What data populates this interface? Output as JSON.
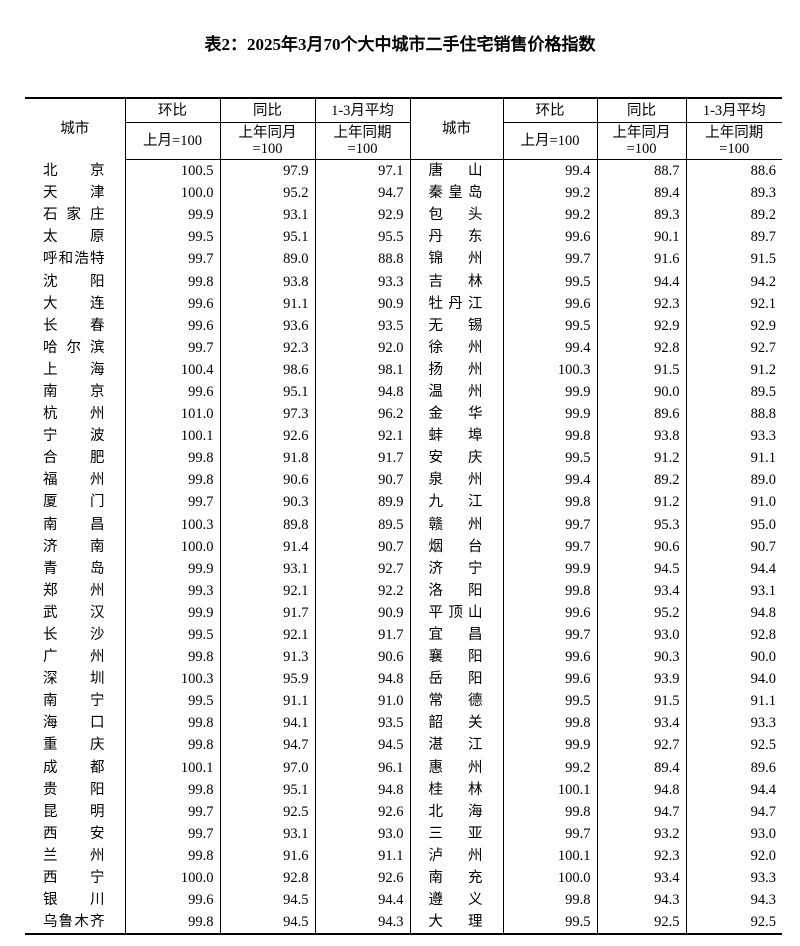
{
  "title": "表2：2025年3月70个大中城市二手住宅销售价格指数",
  "header": {
    "city": "城市",
    "mom": "环比",
    "yoy": "同比",
    "avg": "1-3月平均",
    "mom_base": "上月=100",
    "yoy_base_1": "上年同月",
    "yoy_base_2": "=100",
    "avg_base_1": "上年同期",
    "avg_base_2": "=100"
  },
  "rows": [
    {
      "left": {
        "city": "北京",
        "mom": "100.5",
        "yoy": "97.9",
        "avg": "97.1"
      },
      "right": {
        "city": "唐山",
        "mom": "99.4",
        "yoy": "88.7",
        "avg": "88.6"
      }
    },
    {
      "left": {
        "city": "天津",
        "mom": "100.0",
        "yoy": "95.2",
        "avg": "94.7"
      },
      "right": {
        "city": "秦皇岛",
        "mom": "99.2",
        "yoy": "89.4",
        "avg": "89.3"
      }
    },
    {
      "left": {
        "city": "石家庄",
        "mom": "99.9",
        "yoy": "93.1",
        "avg": "92.9"
      },
      "right": {
        "city": "包头",
        "mom": "99.2",
        "yoy": "89.3",
        "avg": "89.2"
      }
    },
    {
      "left": {
        "city": "太原",
        "mom": "99.5",
        "yoy": "95.1",
        "avg": "95.5"
      },
      "right": {
        "city": "丹东",
        "mom": "99.6",
        "yoy": "90.1",
        "avg": "89.7"
      }
    },
    {
      "left": {
        "city": "呼和浩特",
        "mom": "99.7",
        "yoy": "89.0",
        "avg": "88.8"
      },
      "right": {
        "city": "锦州",
        "mom": "99.7",
        "yoy": "91.6",
        "avg": "91.5"
      }
    },
    {
      "left": {
        "city": "沈阳",
        "mom": "99.8",
        "yoy": "93.8",
        "avg": "93.3"
      },
      "right": {
        "city": "吉林",
        "mom": "99.5",
        "yoy": "94.4",
        "avg": "94.2"
      }
    },
    {
      "left": {
        "city": "大连",
        "mom": "99.6",
        "yoy": "91.1",
        "avg": "90.9"
      },
      "right": {
        "city": "牡丹江",
        "mom": "99.6",
        "yoy": "92.3",
        "avg": "92.1"
      }
    },
    {
      "left": {
        "city": "长春",
        "mom": "99.6",
        "yoy": "93.6",
        "avg": "93.5"
      },
      "right": {
        "city": "无锡",
        "mom": "99.5",
        "yoy": "92.9",
        "avg": "92.9"
      }
    },
    {
      "left": {
        "city": "哈尔滨",
        "mom": "99.7",
        "yoy": "92.3",
        "avg": "92.0"
      },
      "right": {
        "city": "徐州",
        "mom": "99.4",
        "yoy": "92.8",
        "avg": "92.7"
      }
    },
    {
      "left": {
        "city": "上海",
        "mom": "100.4",
        "yoy": "98.6",
        "avg": "98.1"
      },
      "right": {
        "city": "扬州",
        "mom": "100.3",
        "yoy": "91.5",
        "avg": "91.2"
      }
    },
    {
      "left": {
        "city": "南京",
        "mom": "99.6",
        "yoy": "95.1",
        "avg": "94.8"
      },
      "right": {
        "city": "温州",
        "mom": "99.9",
        "yoy": "90.0",
        "avg": "89.5"
      }
    },
    {
      "left": {
        "city": "杭州",
        "mom": "101.0",
        "yoy": "97.3",
        "avg": "96.2"
      },
      "right": {
        "city": "金华",
        "mom": "99.9",
        "yoy": "89.6",
        "avg": "88.8"
      }
    },
    {
      "left": {
        "city": "宁波",
        "mom": "100.1",
        "yoy": "92.6",
        "avg": "92.1"
      },
      "right": {
        "city": "蚌埠",
        "mom": "99.8",
        "yoy": "93.8",
        "avg": "93.3"
      }
    },
    {
      "left": {
        "city": "合肥",
        "mom": "99.8",
        "yoy": "91.8",
        "avg": "91.7"
      },
      "right": {
        "city": "安庆",
        "mom": "99.5",
        "yoy": "91.2",
        "avg": "91.1"
      }
    },
    {
      "left": {
        "city": "福州",
        "mom": "99.8",
        "yoy": "90.6",
        "avg": "90.7"
      },
      "right": {
        "city": "泉州",
        "mom": "99.4",
        "yoy": "89.2",
        "avg": "89.0"
      }
    },
    {
      "left": {
        "city": "厦门",
        "mom": "99.7",
        "yoy": "90.3",
        "avg": "89.9"
      },
      "right": {
        "city": "九江",
        "mom": "99.8",
        "yoy": "91.2",
        "avg": "91.0"
      }
    },
    {
      "left": {
        "city": "南昌",
        "mom": "100.3",
        "yoy": "89.8",
        "avg": "89.5"
      },
      "right": {
        "city": "赣州",
        "mom": "99.7",
        "yoy": "95.3",
        "avg": "95.0"
      }
    },
    {
      "left": {
        "city": "济南",
        "mom": "100.0",
        "yoy": "91.4",
        "avg": "90.7"
      },
      "right": {
        "city": "烟台",
        "mom": "99.7",
        "yoy": "90.6",
        "avg": "90.7"
      }
    },
    {
      "left": {
        "city": "青岛",
        "mom": "99.9",
        "yoy": "93.1",
        "avg": "92.7"
      },
      "right": {
        "city": "济宁",
        "mom": "99.9",
        "yoy": "94.5",
        "avg": "94.4"
      }
    },
    {
      "left": {
        "city": "郑州",
        "mom": "99.3",
        "yoy": "92.1",
        "avg": "92.2"
      },
      "right": {
        "city": "洛阳",
        "mom": "99.8",
        "yoy": "93.4",
        "avg": "93.1"
      }
    },
    {
      "left": {
        "city": "武汉",
        "mom": "99.9",
        "yoy": "91.7",
        "avg": "90.9"
      },
      "right": {
        "city": "平顶山",
        "mom": "99.6",
        "yoy": "95.2",
        "avg": "94.8"
      }
    },
    {
      "left": {
        "city": "长沙",
        "mom": "99.5",
        "yoy": "92.1",
        "avg": "91.7"
      },
      "right": {
        "city": "宜昌",
        "mom": "99.7",
        "yoy": "93.0",
        "avg": "92.8"
      }
    },
    {
      "left": {
        "city": "广州",
        "mom": "99.8",
        "yoy": "91.3",
        "avg": "90.6"
      },
      "right": {
        "city": "襄阳",
        "mom": "99.6",
        "yoy": "90.3",
        "avg": "90.0"
      }
    },
    {
      "left": {
        "city": "深圳",
        "mom": "100.3",
        "yoy": "95.9",
        "avg": "94.8"
      },
      "right": {
        "city": "岳阳",
        "mom": "99.6",
        "yoy": "93.9",
        "avg": "94.0"
      }
    },
    {
      "left": {
        "city": "南宁",
        "mom": "99.5",
        "yoy": "91.1",
        "avg": "91.0"
      },
      "right": {
        "city": "常德",
        "mom": "99.5",
        "yoy": "91.5",
        "avg": "91.1"
      }
    },
    {
      "left": {
        "city": "海口",
        "mom": "99.8",
        "yoy": "94.1",
        "avg": "93.5"
      },
      "right": {
        "city": "韶关",
        "mom": "99.8",
        "yoy": "93.4",
        "avg": "93.3"
      }
    },
    {
      "left": {
        "city": "重庆",
        "mom": "99.8",
        "yoy": "94.7",
        "avg": "94.5"
      },
      "right": {
        "city": "湛江",
        "mom": "99.9",
        "yoy": "92.7",
        "avg": "92.5"
      }
    },
    {
      "left": {
        "city": "成都",
        "mom": "100.1",
        "yoy": "97.0",
        "avg": "96.1"
      },
      "right": {
        "city": "惠州",
        "mom": "99.2",
        "yoy": "89.4",
        "avg": "89.6"
      }
    },
    {
      "left": {
        "city": "贵阳",
        "mom": "99.8",
        "yoy": "95.1",
        "avg": "94.8"
      },
      "right": {
        "city": "桂林",
        "mom": "100.1",
        "yoy": "94.8",
        "avg": "94.4"
      }
    },
    {
      "left": {
        "city": "昆明",
        "mom": "99.7",
        "yoy": "92.5",
        "avg": "92.6"
      },
      "right": {
        "city": "北海",
        "mom": "99.8",
        "yoy": "94.7",
        "avg": "94.7"
      }
    },
    {
      "left": {
        "city": "西安",
        "mom": "99.7",
        "yoy": "93.1",
        "avg": "93.0"
      },
      "right": {
        "city": "三亚",
        "mom": "99.7",
        "yoy": "93.2",
        "avg": "93.0"
      }
    },
    {
      "left": {
        "city": "兰州",
        "mom": "99.8",
        "yoy": "91.6",
        "avg": "91.1"
      },
      "right": {
        "city": "泸州",
        "mom": "100.1",
        "yoy": "92.3",
        "avg": "92.0"
      }
    },
    {
      "left": {
        "city": "西宁",
        "mom": "100.0",
        "yoy": "92.8",
        "avg": "92.6"
      },
      "right": {
        "city": "南充",
        "mom": "100.0",
        "yoy": "93.4",
        "avg": "93.3"
      }
    },
    {
      "left": {
        "city": "银川",
        "mom": "99.6",
        "yoy": "94.5",
        "avg": "94.4"
      },
      "right": {
        "city": "遵义",
        "mom": "99.8",
        "yoy": "94.3",
        "avg": "94.3"
      }
    },
    {
      "left": {
        "city": "乌鲁木齐",
        "mom": "99.8",
        "yoy": "94.5",
        "avg": "94.3"
      },
      "right": {
        "city": "大理",
        "mom": "99.5",
        "yoy": "92.5",
        "avg": "92.5"
      }
    }
  ]
}
